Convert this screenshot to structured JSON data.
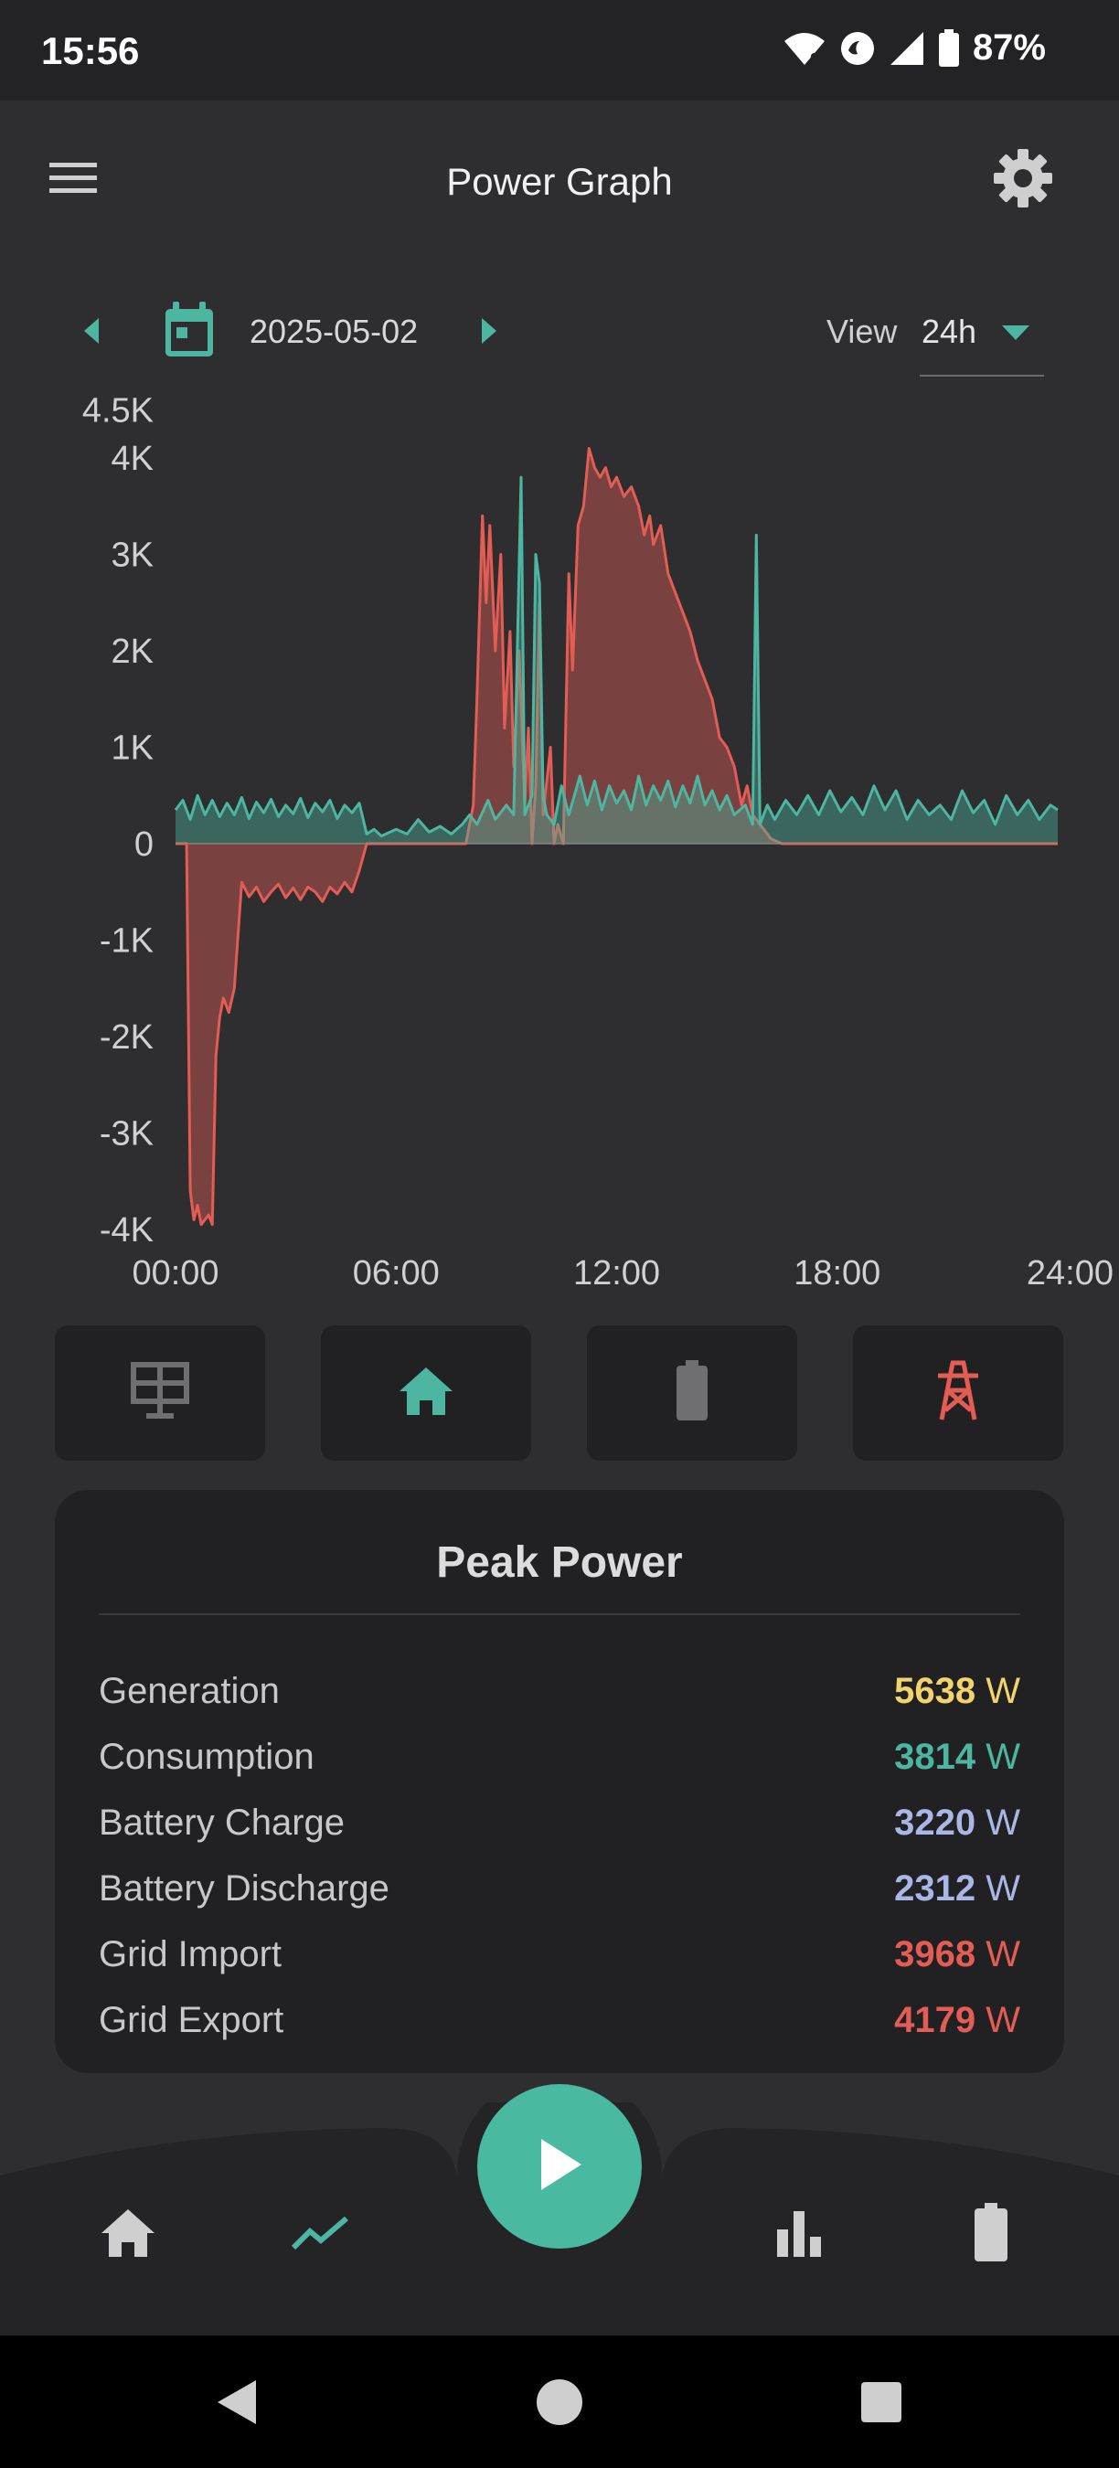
{
  "status_bar": {
    "time": "15:56",
    "battery_percent": "87%",
    "icons": [
      "wifi-6-icon",
      "hotspot-icon",
      "signal-icon",
      "battery-icon"
    ]
  },
  "app_bar": {
    "title": "Power Graph",
    "menu_icon": "hamburger-menu-icon",
    "settings_icon": "gear-icon"
  },
  "date_nav": {
    "date": "2025-05-02",
    "view_label": "View",
    "view_value": "24h"
  },
  "colors": {
    "consumption": "#4db6a0",
    "grid": "#e35d54",
    "generation": "#f2d46b",
    "battery": "#a9b6e6",
    "background": "#2e2e31",
    "card": "#212123"
  },
  "chart_data": {
    "type": "area",
    "x_ticks": [
      "00:00",
      "06:00",
      "12:00",
      "18:00",
      "24:00"
    ],
    "y_ticks": [
      "4.5K",
      "4K",
      "3K",
      "2K",
      "1K",
      "0",
      "-1K",
      "-2K",
      "-3K",
      "-4K"
    ],
    "y_tick_values": [
      4500,
      4000,
      3000,
      2000,
      1000,
      0,
      -1000,
      -2000,
      -3000,
      -4000
    ],
    "xlim": [
      0,
      24
    ],
    "ylim": [
      -4000,
      4500
    ],
    "series": [
      {
        "color": "#e35d54",
        "points": [
          [
            0,
            0
          ],
          [
            0.3,
            0
          ],
          [
            0.4,
            -3600
          ],
          [
            0.5,
            -3900
          ],
          [
            0.6,
            -3750
          ],
          [
            0.7,
            -3950
          ],
          [
            0.9,
            -3850
          ],
          [
            1.0,
            -3950
          ],
          [
            1.1,
            -2200
          ],
          [
            1.2,
            -1800
          ],
          [
            1.3,
            -1600
          ],
          [
            1.45,
            -1750
          ],
          [
            1.6,
            -1500
          ],
          [
            1.8,
            -400
          ],
          [
            2.0,
            -550
          ],
          [
            2.2,
            -450
          ],
          [
            2.4,
            -600
          ],
          [
            2.6,
            -500
          ],
          [
            2.8,
            -420
          ],
          [
            3.0,
            -560
          ],
          [
            3.2,
            -460
          ],
          [
            3.4,
            -580
          ],
          [
            3.6,
            -450
          ],
          [
            3.8,
            -500
          ],
          [
            4.0,
            -600
          ],
          [
            4.2,
            -450
          ],
          [
            4.4,
            -520
          ],
          [
            4.6,
            -400
          ],
          [
            4.8,
            -500
          ],
          [
            5.0,
            -280
          ],
          [
            5.2,
            0
          ],
          [
            7.9,
            0
          ],
          [
            8.1,
            400
          ],
          [
            8.2,
            1500
          ],
          [
            8.35,
            3400
          ],
          [
            8.45,
            2500
          ],
          [
            8.55,
            3300
          ],
          [
            8.7,
            2000
          ],
          [
            8.85,
            3000
          ],
          [
            8.95,
            1200
          ],
          [
            9.1,
            2200
          ],
          [
            9.2,
            800
          ],
          [
            9.35,
            2000
          ],
          [
            9.5,
            400
          ],
          [
            9.6,
            1200
          ],
          [
            9.7,
            0
          ],
          [
            9.8,
            600
          ],
          [
            9.9,
            2500
          ],
          [
            10.0,
            300
          ],
          [
            10.2,
            1000
          ],
          [
            10.3,
            0
          ],
          [
            10.4,
            200
          ],
          [
            10.55,
            0
          ],
          [
            10.7,
            2800
          ],
          [
            10.8,
            1800
          ],
          [
            10.95,
            3300
          ],
          [
            11.1,
            3500
          ],
          [
            11.25,
            4100
          ],
          [
            11.4,
            3900
          ],
          [
            11.55,
            3800
          ],
          [
            11.7,
            3900
          ],
          [
            11.85,
            3700
          ],
          [
            12.0,
            3800
          ],
          [
            12.2,
            3600
          ],
          [
            12.4,
            3700
          ],
          [
            12.6,
            3500
          ],
          [
            12.75,
            3200
          ],
          [
            12.9,
            3400
          ],
          [
            13.0,
            3100
          ],
          [
            13.2,
            3300
          ],
          [
            13.4,
            2800
          ],
          [
            13.6,
            2600
          ],
          [
            13.8,
            2400
          ],
          [
            14.0,
            2200
          ],
          [
            14.2,
            1900
          ],
          [
            14.4,
            1700
          ],
          [
            14.6,
            1500
          ],
          [
            14.8,
            1100
          ],
          [
            15.0,
            1000
          ],
          [
            15.2,
            800
          ],
          [
            15.4,
            400
          ],
          [
            15.55,
            600
          ],
          [
            15.7,
            300
          ],
          [
            15.9,
            200
          ],
          [
            16.2,
            50
          ],
          [
            16.5,
            0
          ],
          [
            24,
            0
          ]
        ]
      },
      {
        "color": "#4db6a0",
        "points": [
          [
            0,
            350
          ],
          [
            0.2,
            450
          ],
          [
            0.4,
            250
          ],
          [
            0.6,
            500
          ],
          [
            0.8,
            300
          ],
          [
            1.0,
            450
          ],
          [
            1.2,
            280
          ],
          [
            1.4,
            420
          ],
          [
            1.6,
            300
          ],
          [
            1.8,
            480
          ],
          [
            2.0,
            260
          ],
          [
            2.2,
            430
          ],
          [
            2.4,
            320
          ],
          [
            2.6,
            460
          ],
          [
            2.8,
            280
          ],
          [
            3.0,
            400
          ],
          [
            3.2,
            310
          ],
          [
            3.4,
            470
          ],
          [
            3.6,
            270
          ],
          [
            3.8,
            420
          ],
          [
            4.0,
            330
          ],
          [
            4.2,
            450
          ],
          [
            4.4,
            260
          ],
          [
            4.6,
            400
          ],
          [
            4.8,
            320
          ],
          [
            5.0,
            420
          ],
          [
            5.2,
            100
          ],
          [
            5.4,
            150
          ],
          [
            5.6,
            80
          ],
          [
            6.0,
            150
          ],
          [
            6.3,
            100
          ],
          [
            6.6,
            250
          ],
          [
            6.9,
            120
          ],
          [
            7.2,
            180
          ],
          [
            7.5,
            100
          ],
          [
            7.8,
            200
          ],
          [
            8.0,
            300
          ],
          [
            8.2,
            200
          ],
          [
            8.5,
            450
          ],
          [
            8.7,
            250
          ],
          [
            9.0,
            400
          ],
          [
            9.2,
            300
          ],
          [
            9.4,
            3800
          ],
          [
            9.5,
            300
          ],
          [
            9.7,
            500
          ],
          [
            9.8,
            3000
          ],
          [
            9.9,
            2700
          ],
          [
            10.0,
            500
          ],
          [
            10.1,
            300
          ],
          [
            10.3,
            200
          ],
          [
            10.5,
            600
          ],
          [
            10.7,
            300
          ],
          [
            11.0,
            700
          ],
          [
            11.2,
            400
          ],
          [
            11.4,
            650
          ],
          [
            11.6,
            350
          ],
          [
            11.8,
            600
          ],
          [
            12.0,
            420
          ],
          [
            12.2,
            550
          ],
          [
            12.4,
            350
          ],
          [
            12.6,
            700
          ],
          [
            12.8,
            400
          ],
          [
            13.0,
            600
          ],
          [
            13.2,
            450
          ],
          [
            13.4,
            650
          ],
          [
            13.6,
            380
          ],
          [
            13.8,
            600
          ],
          [
            14.0,
            420
          ],
          [
            14.2,
            700
          ],
          [
            14.4,
            400
          ],
          [
            14.6,
            550
          ],
          [
            14.8,
            350
          ],
          [
            15.0,
            500
          ],
          [
            15.2,
            300
          ],
          [
            15.5,
            400
          ],
          [
            15.7,
            200
          ],
          [
            15.8,
            3200
          ],
          [
            15.9,
            200
          ],
          [
            16.1,
            400
          ],
          [
            16.3,
            250
          ],
          [
            16.6,
            450
          ],
          [
            16.9,
            300
          ],
          [
            17.2,
            500
          ],
          [
            17.5,
            300
          ],
          [
            17.8,
            550
          ],
          [
            18.1,
            330
          ],
          [
            18.4,
            480
          ],
          [
            18.7,
            300
          ],
          [
            19.0,
            600
          ],
          [
            19.3,
            350
          ],
          [
            19.6,
            550
          ],
          [
            19.9,
            250
          ],
          [
            20.2,
            450
          ],
          [
            20.5,
            300
          ],
          [
            20.8,
            400
          ],
          [
            21.1,
            250
          ],
          [
            21.4,
            550
          ],
          [
            21.7,
            320
          ],
          [
            22.0,
            450
          ],
          [
            22.3,
            200
          ],
          [
            22.6,
            500
          ],
          [
            22.9,
            300
          ],
          [
            23.2,
            450
          ],
          [
            23.5,
            250
          ],
          [
            23.8,
            400
          ],
          [
            24,
            350
          ]
        ]
      }
    ]
  },
  "category_buttons": [
    {
      "name": "solar-panel-button",
      "icon": "solar-panel-icon",
      "color": "#6f6f72"
    },
    {
      "name": "home-button",
      "icon": "home-icon",
      "color": "#4db6a0"
    },
    {
      "name": "battery-button",
      "icon": "battery-icon",
      "color": "#6f6f72"
    },
    {
      "name": "grid-tower-button",
      "icon": "transmission-tower-icon",
      "color": "#e35d54"
    }
  ],
  "peak_power": {
    "title": "Peak Power",
    "unit": "W",
    "rows": [
      {
        "label": "Generation",
        "value": "5638",
        "color": "#f2d46b"
      },
      {
        "label": "Consumption",
        "value": "3814",
        "color": "#4db6a0"
      },
      {
        "label": "Battery Charge",
        "value": "3220",
        "color": "#a9b6e6"
      },
      {
        "label": "Battery Discharge",
        "value": "2312",
        "color": "#a9b6e6"
      },
      {
        "label": "Grid Import",
        "value": "3968",
        "color": "#e35d54"
      },
      {
        "label": "Grid Export",
        "value": "4179",
        "color": "#e35d54"
      }
    ]
  },
  "bottom_nav": {
    "items": [
      "home-icon",
      "trend-line-icon",
      "play-icon",
      "bar-chart-icon",
      "battery-icon"
    ]
  },
  "system_nav": [
    "back-icon",
    "home-circle-icon",
    "recents-icon"
  ]
}
